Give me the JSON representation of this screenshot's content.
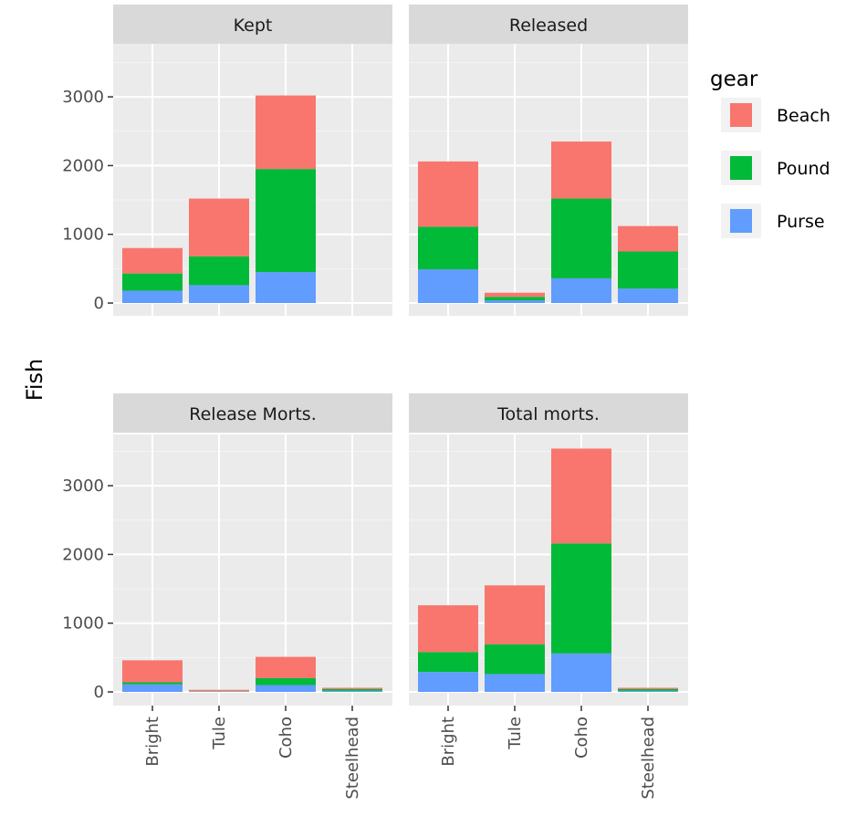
{
  "chart_data": {
    "type": "bar",
    "stacked": true,
    "facet_layout": "2x2 grid, shared y axis",
    "ylabel": "Fish",
    "xlabel": "",
    "ylim": [
      0,
      3700
    ],
    "y_ticks": [
      0,
      1000,
      2000,
      3000
    ],
    "grid": true,
    "legend": {
      "title": "gear",
      "placement": "right"
    },
    "categories": [
      "Bright",
      "Tule",
      "Coho",
      "Steelhead"
    ],
    "series_order": [
      "Beach",
      "Pound",
      "Purse"
    ],
    "colors": {
      "Beach": "#F8766D",
      "Pound": "#00BA38",
      "Purse": "#619CFF"
    },
    "panels": [
      {
        "title": "Kept",
        "series": [
          {
            "name": "Purse",
            "values": [
              180,
              260,
              450,
              0
            ]
          },
          {
            "name": "Pound",
            "values": [
              250,
              420,
              1500,
              0
            ]
          },
          {
            "name": "Beach",
            "values": [
              370,
              840,
              1070,
              0
            ]
          }
        ]
      },
      {
        "title": "Released",
        "series": [
          {
            "name": "Purse",
            "values": [
              490,
              40,
              360,
              210
            ]
          },
          {
            "name": "Pound",
            "values": [
              620,
              50,
              1160,
              540
            ]
          },
          {
            "name": "Beach",
            "values": [
              950,
              60,
              830,
              370
            ]
          }
        ]
      },
      {
        "title": "Release Morts.",
        "series": [
          {
            "name": "Purse",
            "values": [
              110,
              5,
              100,
              15
            ]
          },
          {
            "name": "Pound",
            "values": [
              30,
              5,
              100,
              25
            ]
          },
          {
            "name": "Beach",
            "values": [
              320,
              20,
              310,
              20
            ]
          }
        ]
      },
      {
        "title": "Total morts.",
        "series": [
          {
            "name": "Purse",
            "values": [
              290,
              260,
              560,
              15
            ]
          },
          {
            "name": "Pound",
            "values": [
              290,
              430,
              1600,
              25
            ]
          },
          {
            "name": "Beach",
            "values": [
              680,
              860,
              1380,
              20
            ]
          }
        ]
      }
    ]
  }
}
